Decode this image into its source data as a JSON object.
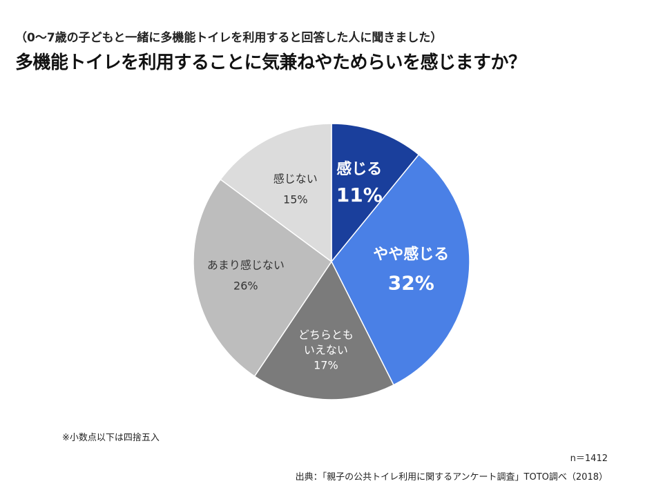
{
  "header": {
    "subtitle": "（0～7歳の子どもと一緒に多機能トイレを利用すると回答した人に聞きました）",
    "title": "多機能トイレを利用することに気兼ねやためらいを感じますか？"
  },
  "chart_data": {
    "type": "pie",
    "title": "多機能トイレを利用することに気兼ねやためらいを感じますか？",
    "slices": [
      {
        "label": "感じる",
        "value": 11,
        "value_label": "11%",
        "color": "#1a3f9c"
      },
      {
        "label": "やや感じる",
        "value": 32,
        "value_label": "32%",
        "color": "#4a80e6"
      },
      {
        "label": "どちらとも\nいえない",
        "value": 17,
        "value_label": "17%",
        "color": "#7b7b7b"
      },
      {
        "label": "あまり感じない",
        "value": 26,
        "value_label": "26%",
        "color": "#bdbdbd"
      },
      {
        "label": "感じない",
        "value": 15,
        "value_label": "15%",
        "color": "#dcdcdc"
      }
    ],
    "start_angle": "12 o'clock",
    "direction": "clockwise"
  },
  "footer": {
    "note": "※小数点以下は四捨五入",
    "sample": "n＝1412",
    "source": "出典：「親子の公共トイレ利用に関するアンケート調査」TOTO調べ（2018）"
  }
}
